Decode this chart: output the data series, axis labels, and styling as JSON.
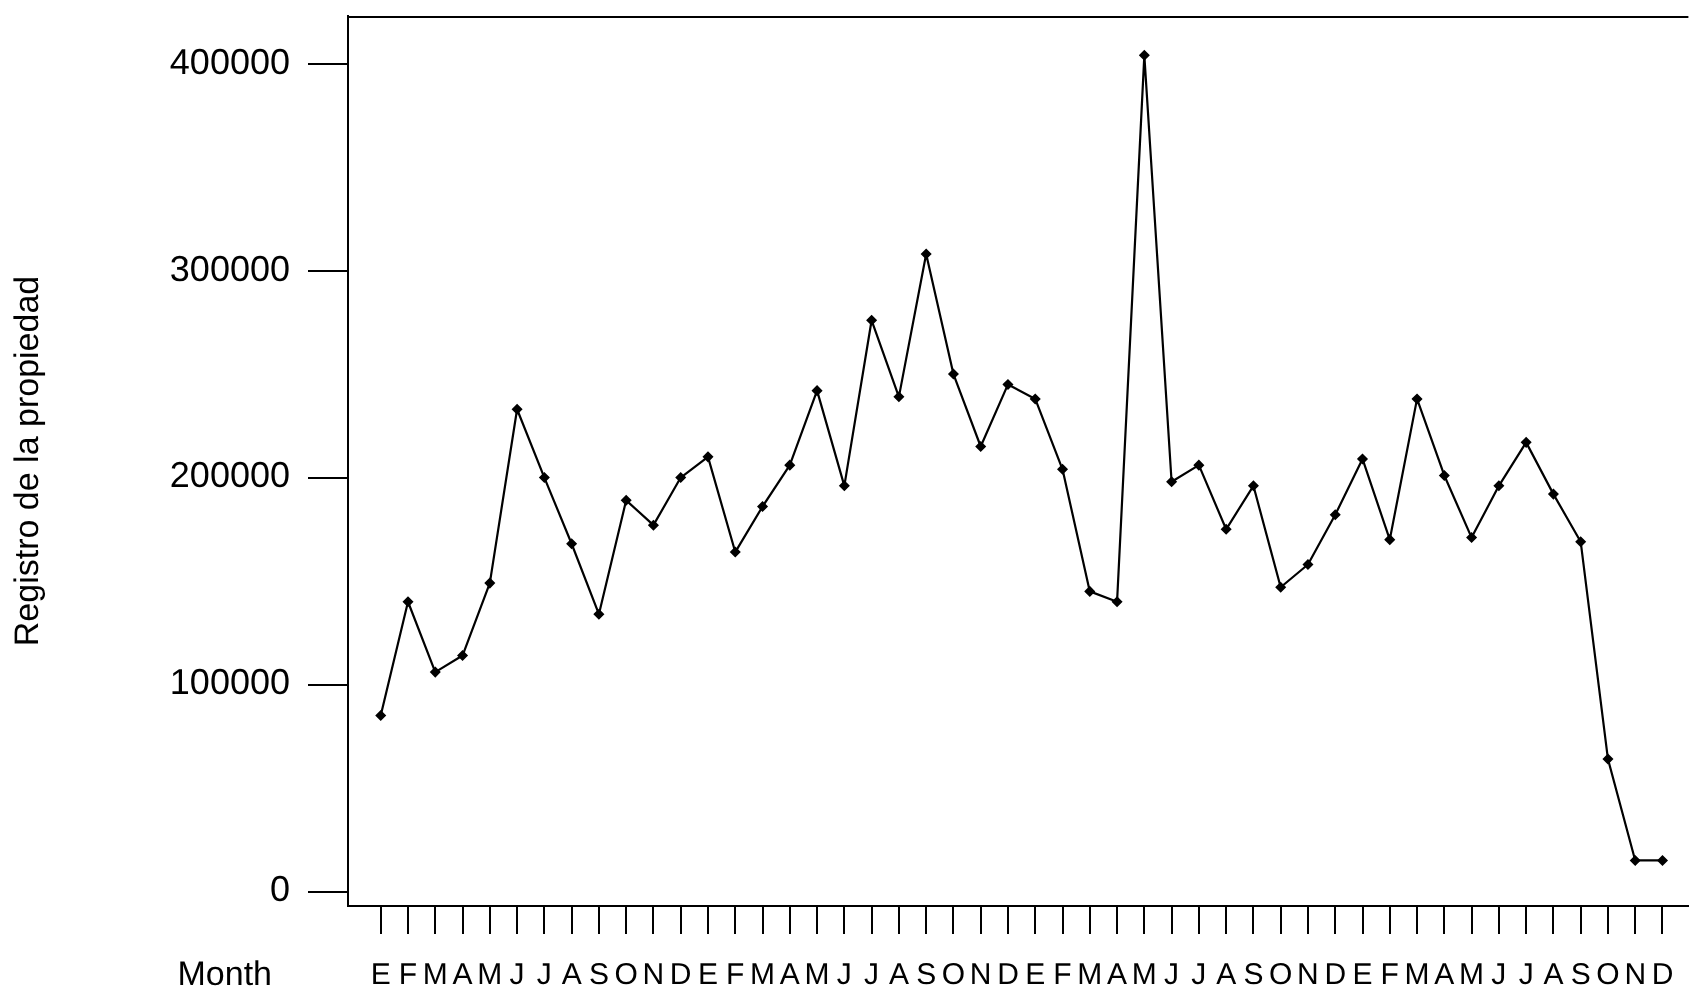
{
  "chart_data": {
    "type": "line",
    "xlabel": "Month",
    "ylabel": "Registro de la propiedad",
    "categories": [
      "E",
      "F",
      "M",
      "A",
      "M",
      "J",
      "J",
      "A",
      "S",
      "O",
      "N",
      "D",
      "E",
      "F",
      "M",
      "A",
      "M",
      "J",
      "J",
      "A",
      "S",
      "O",
      "N",
      "D",
      "E",
      "F",
      "M",
      "A",
      "M",
      "J",
      "J",
      "A",
      "S",
      "O",
      "N",
      "D",
      "E",
      "F",
      "M",
      "A",
      "M",
      "J",
      "J",
      "A",
      "S",
      "O",
      "N",
      "D"
    ],
    "values": [
      85000,
      140000,
      106000,
      114000,
      149000,
      233000,
      200000,
      168000,
      134000,
      189000,
      177000,
      200000,
      210000,
      164000,
      186000,
      206000,
      242000,
      196000,
      276000,
      239000,
      308000,
      250000,
      215000,
      245000,
      238000,
      204000,
      145000,
      140000,
      404000,
      198000,
      206000,
      175000,
      196000,
      147000,
      158000,
      182000,
      209000,
      170000,
      238000,
      201000,
      171000,
      196000,
      217000,
      192000,
      169000,
      64000,
      15000,
      15000
    ],
    "color": "#000000",
    "marker": "diamond",
    "line_style": "solid",
    "ylim": [
      -7000,
      423000
    ],
    "yticks": [
      0,
      100000,
      200000,
      300000,
      400000
    ]
  }
}
